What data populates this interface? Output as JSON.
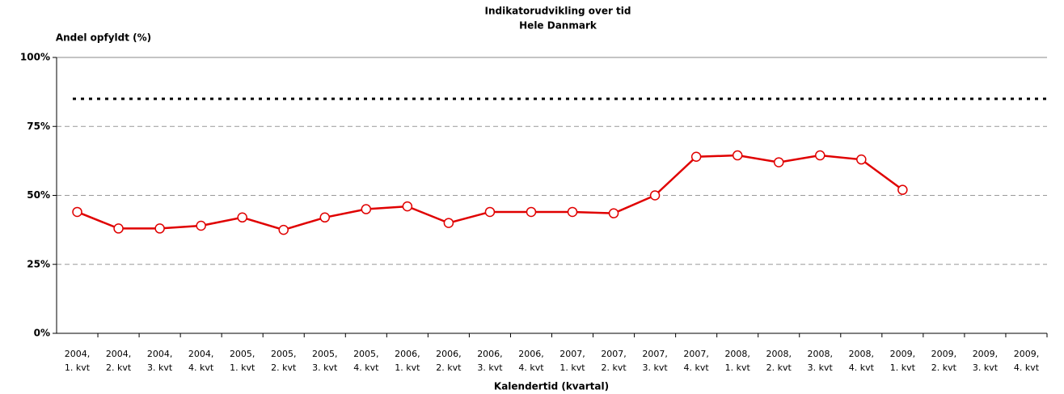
{
  "chart_data": {
    "type": "line",
    "title": [
      "Indikatorudvikling over tid",
      "Hele Danmark"
    ],
    "y_label": "Andel opfyldt (%)",
    "x_label": "Kalendertid (kvartal)",
    "categories": [
      [
        "2004,",
        "1. kvt"
      ],
      [
        "2004,",
        "2. kvt"
      ],
      [
        "2004,",
        "3. kvt"
      ],
      [
        "2004,",
        "4. kvt"
      ],
      [
        "2005,",
        "1. kvt"
      ],
      [
        "2005,",
        "2. kvt"
      ],
      [
        "2005,",
        "3. kvt"
      ],
      [
        "2005,",
        "4. kvt"
      ],
      [
        "2006,",
        "1. kvt"
      ],
      [
        "2006,",
        "2. kvt"
      ],
      [
        "2006,",
        "3. kvt"
      ],
      [
        "2006,",
        "4. kvt"
      ],
      [
        "2007,",
        "1. kvt"
      ],
      [
        "2007,",
        "2. kvt"
      ],
      [
        "2007,",
        "3. kvt"
      ],
      [
        "2007,",
        "4. kvt"
      ],
      [
        "2008,",
        "1. kvt"
      ],
      [
        "2008,",
        "2. kvt"
      ],
      [
        "2008,",
        "3. kvt"
      ],
      [
        "2008,",
        "4. kvt"
      ],
      [
        "2009,",
        "1. kvt"
      ],
      [
        "2009,",
        "2. kvt"
      ],
      [
        "2009,",
        "3. kvt"
      ],
      [
        "2009,",
        "4. kvt"
      ]
    ],
    "series": [
      {
        "color": "#e00000",
        "values": [
          44,
          38,
          38,
          39,
          42,
          37.5,
          42,
          45,
          46,
          40,
          44,
          44,
          44,
          43.5,
          50,
          64,
          64.5,
          62,
          64.5,
          63,
          52,
          null,
          null,
          null
        ]
      }
    ],
    "reference_line": {
      "value": 85,
      "color": "#000000"
    },
    "ylim": [
      0,
      100
    ],
    "yticks": [
      {
        "value": 0,
        "label": "0%"
      },
      {
        "value": 25,
        "label": "25%"
      },
      {
        "value": 50,
        "label": "50%"
      },
      {
        "value": 75,
        "label": "75%"
      },
      {
        "value": 100,
        "label": "100%"
      }
    ],
    "grid": true
  }
}
